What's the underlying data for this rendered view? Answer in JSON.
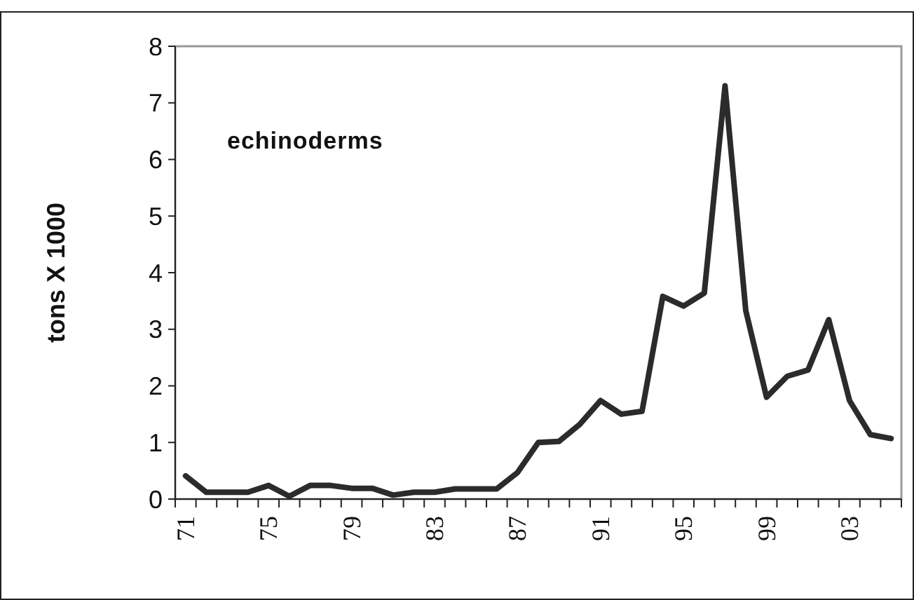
{
  "chart_data": {
    "type": "line",
    "ylabel": "tons X 1000",
    "annotations": [
      "echinoderms"
    ],
    "categories": [
      "71",
      null,
      null,
      null,
      "75",
      null,
      null,
      null,
      "79",
      null,
      null,
      null,
      "83",
      null,
      null,
      null,
      "87",
      null,
      null,
      null,
      "91",
      null,
      null,
      null,
      "95",
      null,
      null,
      null,
      "99",
      null,
      null,
      null,
      "03",
      null,
      null
    ],
    "series": [
      {
        "color": "#2b2b2b",
        "values": [
          0.41,
          0.12,
          0.12,
          0.12,
          0.24,
          0.05,
          0.24,
          0.24,
          0.19,
          0.19,
          0.07,
          0.12,
          0.12,
          0.18,
          0.18,
          0.18,
          0.47,
          1.0,
          1.02,
          1.32,
          1.74,
          1.5,
          1.55,
          3.58,
          3.41,
          3.64,
          7.3,
          3.33,
          1.8,
          2.17,
          2.28,
          3.17,
          1.74,
          1.14,
          1.07
        ]
      }
    ],
    "ylim": [
      0,
      8
    ],
    "yticks": [
      0,
      1,
      2,
      3,
      4,
      5,
      6,
      7,
      8
    ],
    "marker": "none",
    "line_style": "solid"
  }
}
